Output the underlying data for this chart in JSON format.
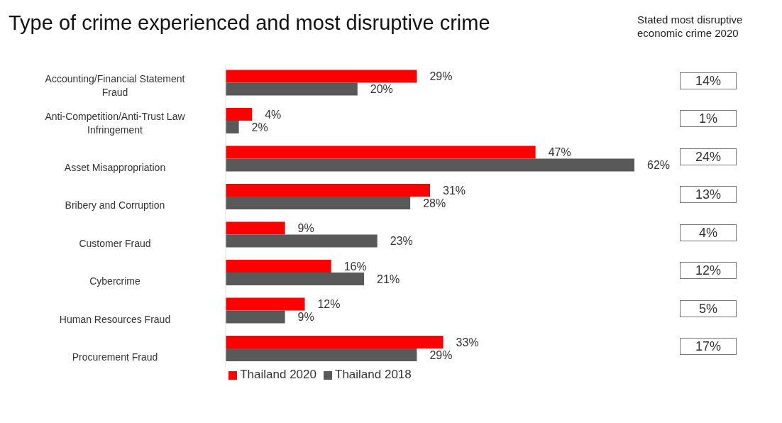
{
  "chart_data": {
    "type": "bar",
    "orientation": "horizontal",
    "title": "Type of crime experienced and most disruptive crime",
    "categories": [
      "Accounting/Financial Statement Fraud",
      "Anti-Competition/Anti-Trust Law Infringement",
      "Asset Misappropriation",
      "Bribery and Corruption",
      "Customer Fraud",
      "Cybercrime",
      "Human Resources Fraud",
      "Procurement Fraud"
    ],
    "series": [
      {
        "name": "Thailand 2020",
        "color": "#ff0000",
        "values": [
          29,
          4,
          47,
          31,
          9,
          16,
          12,
          33
        ],
        "value_labels": [
          "29%",
          "4%",
          "47%",
          "31%",
          "9%",
          "16%",
          "12%",
          "33%"
        ]
      },
      {
        "name": "Thailand 2018",
        "color": "#595959",
        "values": [
          20,
          2,
          62,
          28,
          23,
          21,
          9,
          29
        ],
        "value_labels": [
          "20%",
          "2%",
          "62%",
          "28%",
          "23%",
          "21%",
          "9%",
          "29%"
        ]
      }
    ],
    "annotations": [
      "Stated most disruptive economic crime 2020",
      "14%",
      "1%",
      "24%",
      "13%",
      "4%",
      "12%",
      "5%",
      "17%"
    ],
    "grid": false,
    "legend": "bottom"
  }
}
